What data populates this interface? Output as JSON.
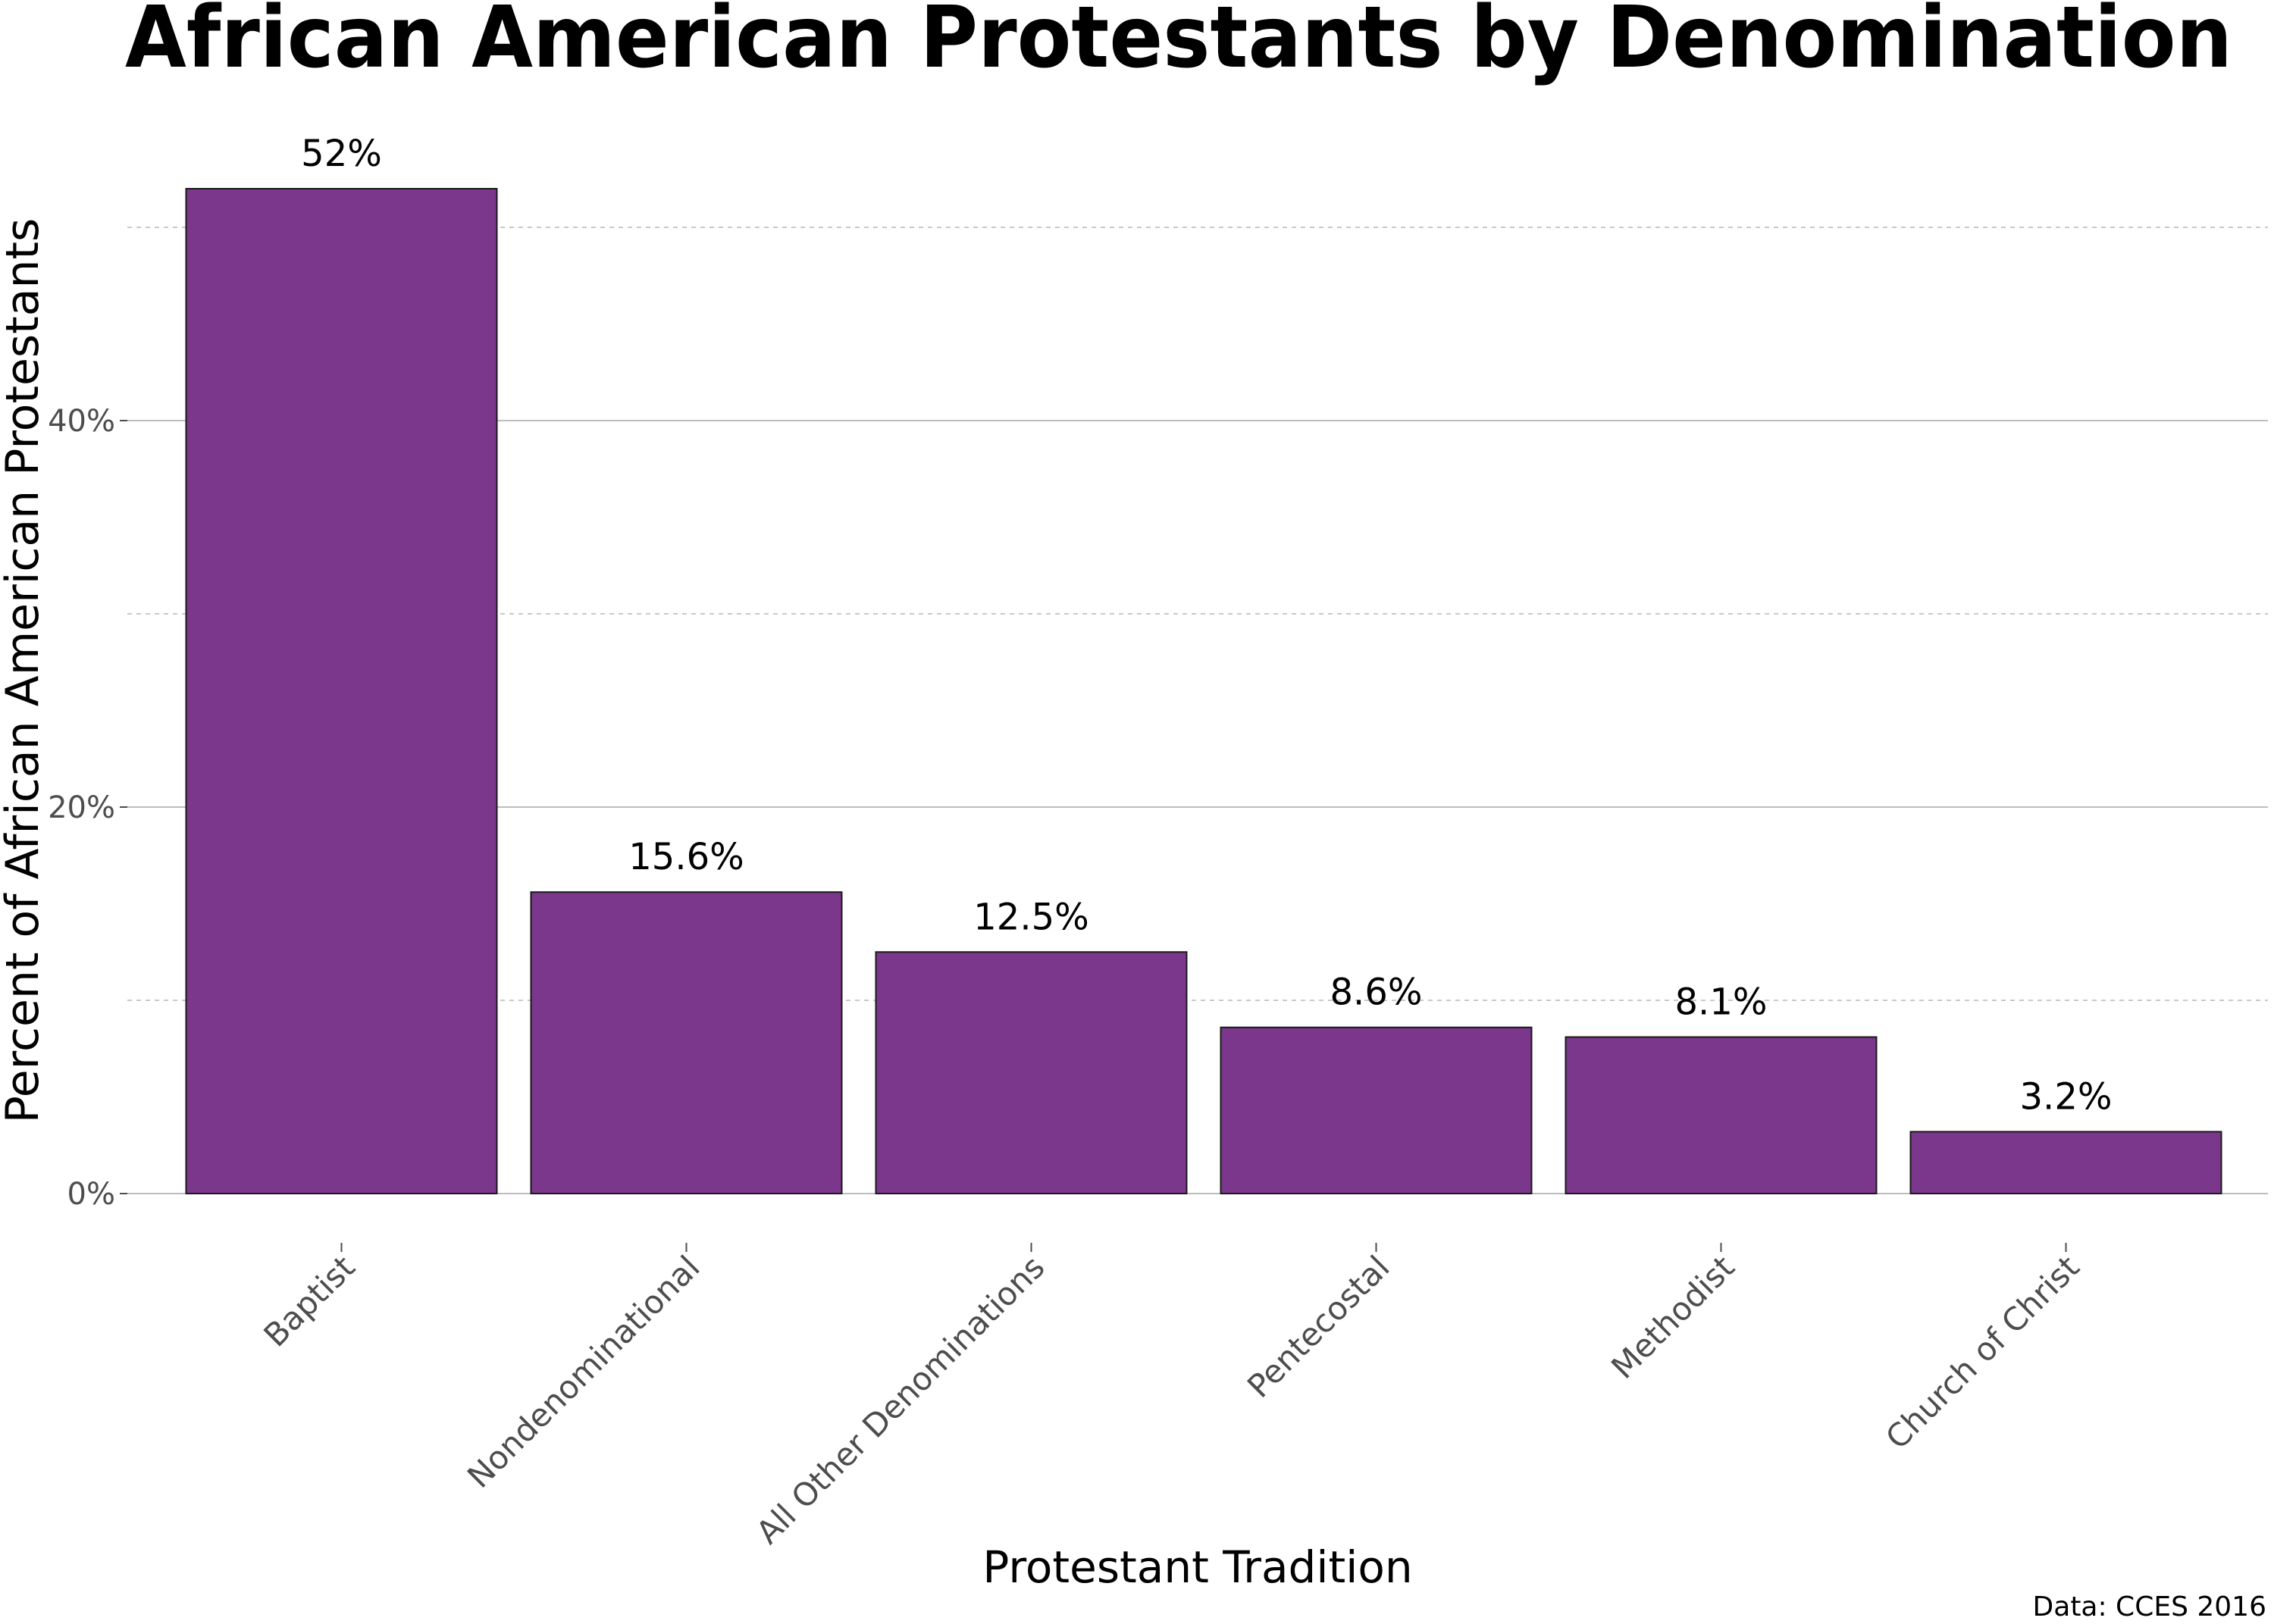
{
  "chart_data": {
    "type": "bar",
    "title": "African American Protestants by Denomination",
    "xlabel": "Protestant Tradition",
    "ylabel": "Percent of African American Protestants",
    "caption": "Data: CCES 2016",
    "categories": [
      "Baptist",
      "Nondenominational",
      "All Other Denominations",
      "Pentecostal",
      "Methodist",
      "Church of Christ"
    ],
    "values": [
      52,
      15.6,
      12.5,
      8.6,
      8.1,
      3.2
    ],
    "value_labels": [
      "52%",
      "15.6%",
      "12.5%",
      "8.6%",
      "8.1%",
      "3.2%"
    ],
    "ylim": [
      0,
      54
    ],
    "yticks": [
      0,
      20,
      40
    ],
    "ytick_labels": [
      "0%",
      "20%",
      "40%"
    ],
    "minor_gridlines": [
      10,
      30,
      50
    ],
    "grid": true,
    "legend": "none",
    "bar_color": "#7a378b",
    "bar_outline_color": "#1a1a1a"
  }
}
